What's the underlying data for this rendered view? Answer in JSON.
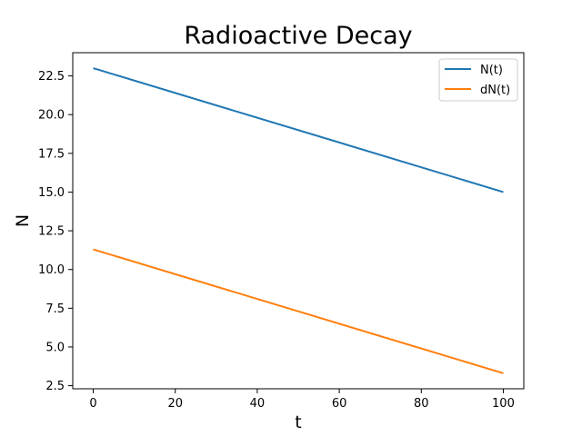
{
  "chart_data": {
    "type": "line",
    "title": "Radioactive Decay",
    "xlabel": "t",
    "ylabel": "N",
    "xlim": [
      -5,
      105
    ],
    "ylim": [
      2.3,
      24.0
    ],
    "xticks": [
      0,
      20,
      40,
      60,
      80,
      100
    ],
    "yticks": [
      2.5,
      5.0,
      7.5,
      10.0,
      12.5,
      15.0,
      17.5,
      20.0,
      22.5
    ],
    "grid": false,
    "legend": "top-right",
    "series": [
      {
        "name": "N(t)",
        "color": "#1f77b4",
        "x": [
          0,
          100
        ],
        "y": [
          23.0,
          15.0
        ]
      },
      {
        "name": "dN(t)",
        "color": "#ff7f0e",
        "x": [
          0,
          100
        ],
        "y": [
          11.3,
          3.3
        ]
      }
    ]
  }
}
